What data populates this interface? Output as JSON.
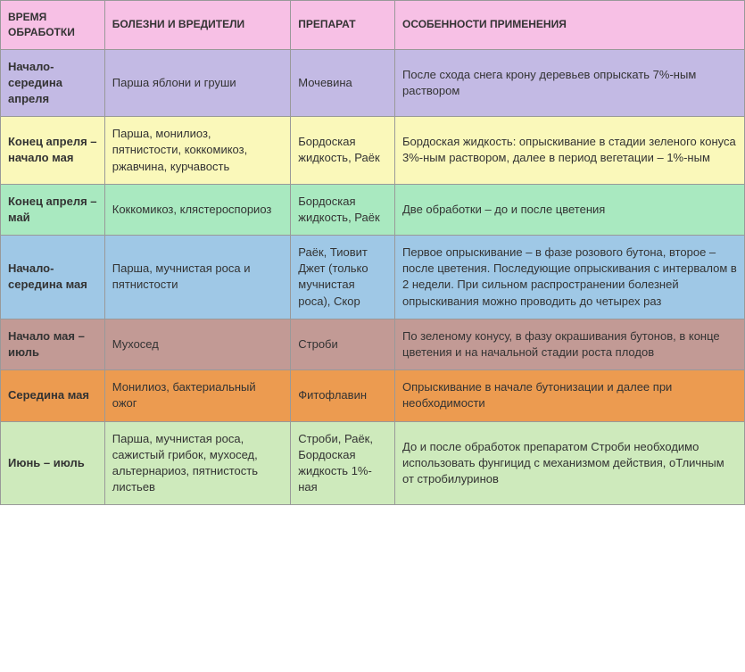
{
  "table": {
    "columns": [
      "ВРЕМЯ ОБРАБОТКИ",
      "БОЛЕЗНИ И ВРЕДИТЕЛИ",
      "ПРЕПАРАТ",
      "ОСОБЕННОСТИ ПРИМЕНЕНИЯ"
    ],
    "header_bg": "#f7c0e5",
    "row_colors": [
      "#c3bae4",
      "#faf8ba",
      "#a9e9c0",
      "#9fc8e6",
      "#c29a95",
      "#ec9b50",
      "#ceeabc"
    ],
    "rows": [
      {
        "time": "Начало-середина апреля",
        "disease": "Парша яблони и груши",
        "drug": "Мочевина",
        "usage": "После схода снега крону деревьев опрыскать 7%-ным раствором"
      },
      {
        "time": "Конец апреля – начало мая",
        "disease": "Парша, монилиоз, пятнистости, коккомикоз, ржавчина, курчавость",
        "drug": "Бордоская жидкость, Раёк",
        "usage": "Бордоская жидкость: опрыскивание в стадии зеленого конуса 3%-ным раствором, далее в период вегетации – 1%-ным"
      },
      {
        "time": "Конец апреля – май",
        "disease": "Коккомикоз, клястероспориоз",
        "drug": "Бордоская жидкость, Раёк",
        "usage": "Две обработки – до и после цветения"
      },
      {
        "time": "Начало-середина мая",
        "disease": "Парша, мучнистая роса и пятнистости",
        "drug": "Раёк, Тиовит Джет (только мучнистая роса), Скор",
        "usage": "Первое опрыскивание – в фазе розового бутона, второе – после цветения. Последующие опрыскивания с интервалом в 2 недели. При сильном распространении болезней опрыскивания можно проводить до четырех раз"
      },
      {
        "time": "Начало мая – июль",
        "disease": "Мухосед",
        "drug": "Строби",
        "usage": "По зеленому конусу, в фазу окрашивания бутонов, в конце цветения и на начальной стадии роста  плодов"
      },
      {
        "time": "Середина мая",
        "disease": "Монилиоз, бактериальный ожог",
        "drug": "Фитофлавин",
        "usage": "Опрыскивание в начале бутонизации и далее при необходимости"
      },
      {
        "time": "Июнь – июль",
        "disease": "Парша, мучнистая роса, сажистый грибок, мухосед, альтернариоз, пятнистость листьев",
        "drug": "Строби, Раёк, Бордоская жидкость 1%-ная",
        "usage": "До и после обработок препаратом Строби необходимо использовать фунгицид с механизмом действия, оТличным от стробилуринов"
      }
    ]
  }
}
